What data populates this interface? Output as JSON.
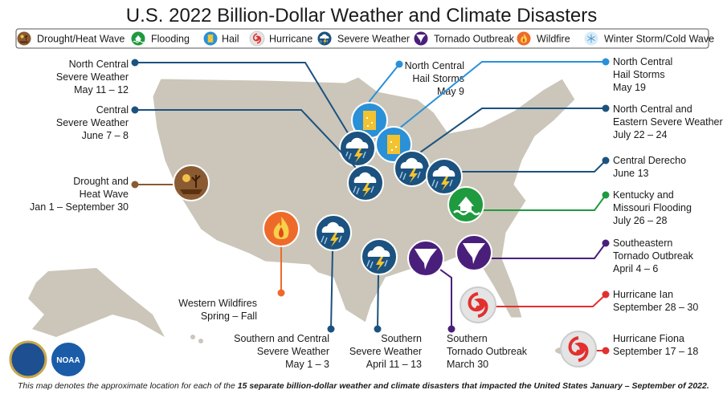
{
  "title": "U.S. 2022 Billion-Dollar Weather and Climate Disasters",
  "legend": [
    {
      "label": "Drought/Heat Wave",
      "color": "#8a5a32",
      "events": [
        {
          "lines": [
            "Drought and",
            "Heat Wave",
            "Jan 1 – September 30"
          ]
        }
      ]
    },
    {
      "label": "Flooding",
      "color": "#1f9a3f",
      "events": [
        {
          "lines": [
            "Kentucky and",
            "Missouri Flooding",
            "July 26 – 28"
          ]
        }
      ]
    },
    {
      "label": "Hail",
      "color": "#2a90d8",
      "events": [
        {
          "lines": [
            "North Central",
            "Hail Storms",
            "May 9"
          ]
        },
        {
          "lines": [
            "North Central",
            "Hail Storms",
            "May 19"
          ]
        }
      ]
    },
    {
      "label": "Hurricane",
      "color": "#e2302f",
      "events": [
        {
          "lines": [
            "Hurricane Ian",
            "September 28 – 30"
          ]
        },
        {
          "lines": [
            "Hurricane Fiona",
            "September 17 – 18"
          ]
        }
      ]
    },
    {
      "label": "Severe Weather",
      "color": "#1b527f",
      "events": [
        {
          "lines": [
            "North Central",
            "Severe Weather",
            "May 11 – 12"
          ]
        },
        {
          "lines": [
            "Central",
            "Severe Weather",
            "June 7 – 8"
          ]
        },
        {
          "lines": [
            "North Central and",
            "Eastern Severe Weather",
            "July 22 – 24"
          ]
        },
        {
          "lines": [
            "Central Derecho",
            "June 13"
          ]
        },
        {
          "lines": [
            "Southern and Central",
            "Severe Weather",
            "May 1 – 3"
          ]
        },
        {
          "lines": [
            "Southern",
            "Severe Weather",
            "April 11 – 13"
          ]
        }
      ]
    },
    {
      "label": "Tornado Outbreak",
      "color": "#4a1f7c",
      "events": [
        {
          "lines": [
            "Southeastern",
            "Tornado Outbreak",
            "April 4 – 6"
          ]
        },
        {
          "lines": [
            "Southern",
            "Tornado Outbreak",
            "March 30"
          ]
        }
      ]
    },
    {
      "label": "Wildfire",
      "color": "#ee6a2a",
      "events": [
        {
          "lines": [
            "Western Wildfires",
            "Spring – Fall"
          ]
        }
      ]
    },
    {
      "label": "Winter Storm/Cold Wave",
      "color": "#9fd0ee",
      "events": []
    }
  ],
  "logo_text": "NOAA",
  "footer": {
    "intro": "This map denotes the approximate location for each of the ",
    "highlight": "15 separate billion-dollar weather and climate disasters that impacted the United States January – September of 2022."
  }
}
